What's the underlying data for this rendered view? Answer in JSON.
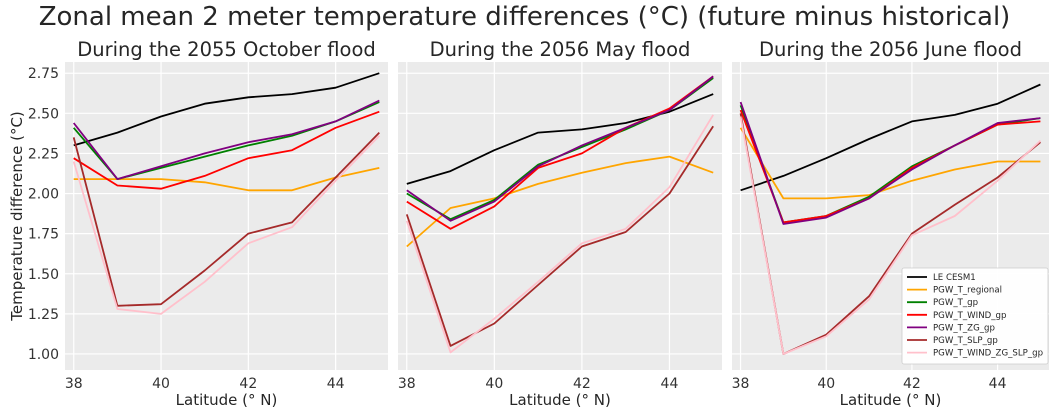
{
  "figure": {
    "suptitle": "Zonal mean 2 meter temperature differences (°C) (future minus historical)"
  },
  "colors": {
    "background": "#ebebeb",
    "LE CESM1": "#000000",
    "PGW_T_regional": "#ffa500",
    "PGW_T_gp": "#008000",
    "PGW_T_WIND_gp": "#ff0000",
    "PGW_T_ZG_gp": "#800080",
    "PGW_T_SLP_gp": "#a52a2a",
    "PGW_T_WIND_ZG_SLP_gp": "#ffc0cb"
  },
  "chart_data": [
    {
      "type": "line",
      "title": "During the 2055 October flood",
      "xlabel": "Latitude (° N)",
      "ylabel": "Temperature difference (°C)",
      "xlim": [
        37.8,
        45.2
      ],
      "ylim": [
        0.9,
        2.82
      ],
      "xticks": [
        "38",
        "40",
        "42",
        "44"
      ],
      "yticks": [
        "1.00",
        "1.25",
        "1.50",
        "1.75",
        "2.00",
        "2.25",
        "2.50",
        "2.75"
      ],
      "grid": true,
      "x": [
        38,
        39,
        40,
        41,
        42,
        43,
        44,
        45
      ],
      "series": [
        {
          "name": "LE CESM1",
          "values": [
            2.3,
            2.38,
            2.48,
            2.56,
            2.6,
            2.62,
            2.66,
            2.75
          ]
        },
        {
          "name": "PGW_T_regional",
          "values": [
            2.09,
            2.09,
            2.09,
            2.07,
            2.02,
            2.02,
            2.1,
            2.16
          ]
        },
        {
          "name": "PGW_T_gp",
          "values": [
            2.41,
            2.09,
            2.16,
            2.23,
            2.3,
            2.36,
            2.45,
            2.57
          ]
        },
        {
          "name": "PGW_T_WIND_gp",
          "values": [
            2.22,
            2.05,
            2.03,
            2.11,
            2.22,
            2.27,
            2.41,
            2.51
          ]
        },
        {
          "name": "PGW_T_ZG_gp",
          "values": [
            2.44,
            2.09,
            2.17,
            2.25,
            2.32,
            2.37,
            2.45,
            2.58
          ]
        },
        {
          "name": "PGW_T_SLP_gp",
          "values": [
            2.35,
            1.3,
            1.31,
            1.52,
            1.75,
            1.82,
            2.1,
            2.38
          ]
        },
        {
          "name": "PGW_T_WIND_ZG_SLP_gp",
          "values": [
            2.2,
            1.28,
            1.25,
            1.45,
            1.69,
            1.79,
            2.08,
            2.36
          ]
        }
      ]
    },
    {
      "type": "line",
      "title": "During the 2056 May flood",
      "xlabel": "Latitude (° N)",
      "ylabel": "",
      "xlim": [
        37.8,
        45.2
      ],
      "ylim": [
        0.9,
        2.82
      ],
      "xticks": [
        "38",
        "40",
        "42",
        "44"
      ],
      "yticks": [],
      "grid": true,
      "x": [
        38,
        39,
        40,
        41,
        42,
        43,
        44,
        45
      ],
      "series": [
        {
          "name": "LE CESM1",
          "values": [
            2.06,
            2.14,
            2.27,
            2.38,
            2.4,
            2.44,
            2.51,
            2.62
          ]
        },
        {
          "name": "PGW_T_regional",
          "values": [
            1.67,
            1.91,
            1.97,
            2.06,
            2.13,
            2.19,
            2.23,
            2.13
          ]
        },
        {
          "name": "PGW_T_gp",
          "values": [
            2.0,
            1.84,
            1.96,
            2.18,
            2.29,
            2.4,
            2.52,
            2.72
          ]
        },
        {
          "name": "PGW_T_WIND_gp",
          "values": [
            1.95,
            1.78,
            1.92,
            2.16,
            2.25,
            2.41,
            2.53,
            2.73
          ]
        },
        {
          "name": "PGW_T_ZG_gp",
          "values": [
            2.02,
            1.83,
            1.95,
            2.17,
            2.3,
            2.41,
            2.52,
            2.73
          ]
        },
        {
          "name": "PGW_T_SLP_gp",
          "values": [
            1.87,
            1.05,
            1.19,
            1.43,
            1.67,
            1.76,
            2.0,
            2.42
          ]
        },
        {
          "name": "PGW_T_WIND_ZG_SLP_gp",
          "values": [
            1.83,
            1.01,
            1.22,
            1.45,
            1.69,
            1.78,
            2.04,
            2.49
          ]
        }
      ]
    },
    {
      "type": "line",
      "title": "During the 2056 June flood",
      "xlabel": "Latitude (° N)",
      "ylabel": "",
      "xlim": [
        37.8,
        45.2
      ],
      "ylim": [
        0.9,
        2.82
      ],
      "xticks": [
        "38",
        "40",
        "42",
        "44"
      ],
      "yticks": [],
      "grid": true,
      "legend": "lower-right",
      "x": [
        38,
        39,
        40,
        41,
        42,
        43,
        44,
        45
      ],
      "series": [
        {
          "name": "LE CESM1",
          "values": [
            2.02,
            2.11,
            2.22,
            2.34,
            2.45,
            2.49,
            2.56,
            2.68
          ]
        },
        {
          "name": "PGW_T_regional",
          "values": [
            2.41,
            1.97,
            1.97,
            1.99,
            2.08,
            2.15,
            2.2,
            2.2
          ]
        },
        {
          "name": "PGW_T_gp",
          "values": [
            2.55,
            1.82,
            1.86,
            1.98,
            2.17,
            2.3,
            2.43,
            2.47
          ]
        },
        {
          "name": "PGW_T_WIND_gp",
          "values": [
            2.52,
            1.82,
            1.86,
            1.97,
            2.16,
            2.3,
            2.43,
            2.45
          ]
        },
        {
          "name": "PGW_T_ZG_gp",
          "values": [
            2.57,
            1.81,
            1.85,
            1.97,
            2.15,
            2.3,
            2.44,
            2.47
          ]
        },
        {
          "name": "PGW_T_SLP_gp",
          "values": [
            2.5,
            1.0,
            1.12,
            1.36,
            1.75,
            1.93,
            2.1,
            2.32
          ]
        },
        {
          "name": "PGW_T_WIND_ZG_SLP_gp",
          "values": [
            2.48,
            1.0,
            1.11,
            1.34,
            1.74,
            1.86,
            2.08,
            2.33
          ]
        }
      ]
    }
  ]
}
